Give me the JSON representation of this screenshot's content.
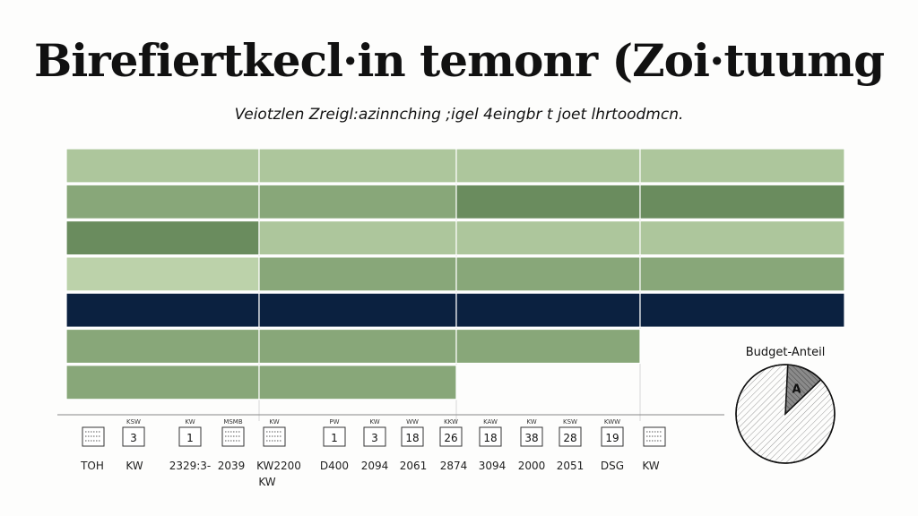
{
  "chart_data": {
    "type": "bar",
    "title": "Birefiertkecl·in temonr (Zoi·tuumg",
    "subtitle": "Veiotzlen Zreigl:azinnching ;igel 4eingbr t joet lhrtoodmcn.",
    "colors": {
      "light": "#adc69c",
      "medium": "#88a779",
      "dark": "#6a8c5e",
      "pale": "#bcd2aa",
      "navy": "#0b2140"
    },
    "segments": [
      [
        "light",
        "light",
        "light",
        "light"
      ],
      [
        "medium",
        "medium",
        "dark",
        "dark"
      ],
      [
        "dark",
        "light",
        "light",
        "light"
      ],
      [
        "pale",
        "medium",
        "medium",
        "medium"
      ],
      [
        "navy",
        "navy",
        "navy",
        "navy"
      ],
      [
        "medium",
        "medium",
        "medium",
        null
      ],
      [
        "medium",
        "medium",
        null,
        null
      ]
    ],
    "rows": [
      {
        "start": 0,
        "end": 4
      },
      {
        "start": 0,
        "end": 4
      },
      {
        "start": 0,
        "end": 4
      },
      {
        "start": 0,
        "end": 4
      },
      {
        "start": 0,
        "end": 4
      },
      {
        "start": 0,
        "end": 3.35
      },
      {
        "start": 0,
        "end": 2
      }
    ],
    "calendar_ticks": [
      {
        "head": "",
        "num": "",
        "icon": true
      },
      {
        "head": "KSW",
        "num": "3",
        "icon": false
      },
      {
        "head": "KW",
        "num": "1",
        "icon": false
      },
      {
        "head": "MSMB",
        "num": "",
        "icon": true
      },
      {
        "head": "KW",
        "num": "",
        "icon": true
      },
      {
        "head": "PW",
        "num": "1",
        "icon": false
      },
      {
        "head": "KW",
        "num": "3",
        "icon": false
      },
      {
        "head": "WW",
        "num": "18",
        "icon": false
      },
      {
        "head": "KKW",
        "num": "26",
        "icon": false
      },
      {
        "head": "KAW",
        "num": "18",
        "icon": false
      },
      {
        "head": "KW",
        "num": "38",
        "icon": false
      },
      {
        "head": "KSW",
        "num": "28",
        "icon": false
      },
      {
        "head": "KWW",
        "num": "19",
        "icon": false
      },
      {
        "head": "",
        "num": "",
        "icon": true
      }
    ],
    "x_tick_labels": [
      "TOH",
      "KW",
      "2329:3-",
      "2039",
      "KW2200",
      "D400",
      "2094",
      "2061",
      "2874",
      "3094",
      "2000",
      "2051",
      "DSG",
      "KW"
    ],
    "x_sublabel": "KW",
    "inset_pie": {
      "title": "Budget-Anteil",
      "slices": [
        {
          "label": "A",
          "value": 12,
          "color": "#8a8a8a"
        },
        {
          "label": "",
          "value": 88,
          "color": "#ffffff"
        }
      ]
    }
  }
}
